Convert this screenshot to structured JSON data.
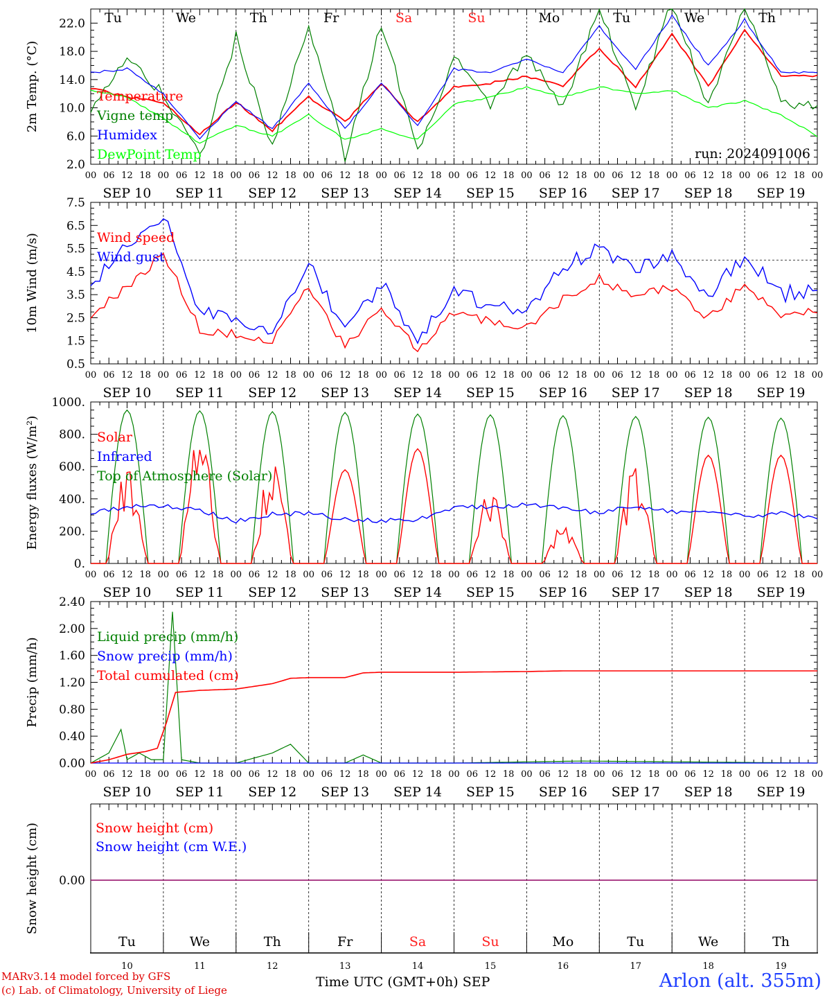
{
  "chart_data": [
    {
      "type": "line",
      "ylabel": "2m Temp. (°C)",
      "ylim": [
        2,
        24
      ],
      "yticks": [
        "2.0",
        "6.0",
        "10.0",
        "14.0",
        "18.0",
        "22.0"
      ],
      "run_label": "run: 2024091006",
      "days_top": [
        "Tu",
        "We",
        "Th",
        "Fr",
        "Sa",
        "Su",
        "Mo",
        "Tu",
        "We",
        "Th"
      ],
      "weekend_days": [
        "Sa",
        "Su"
      ],
      "weekend_color": "#ff2020",
      "x_hours": [
        0,
        12,
        24,
        36,
        48,
        60,
        72,
        84,
        96,
        108,
        120,
        132,
        144,
        156,
        168,
        180,
        192,
        204,
        216,
        228,
        240
      ],
      "series": [
        {
          "name": "Temperature",
          "color": "#ff0000",
          "values": [
            12.8,
            11.5,
            10.8,
            6.2,
            10.8,
            6.8,
            11.5,
            8.0,
            13.5,
            8.0,
            13.0,
            13.5,
            14.5,
            13.0,
            18.5,
            13.0,
            20.5,
            13.0,
            21.0,
            14.5,
            14.5
          ]
        },
        {
          "name": "Vigne temp",
          "color": "#008000",
          "values": [
            9.5,
            17.0,
            12.0,
            3.0,
            20.0,
            4.5,
            22.0,
            3.0,
            22.0,
            4.0,
            17.0,
            10.0,
            18.0,
            10.0,
            24.0,
            10.0,
            25.0,
            10.0,
            25.0,
            10.5,
            10.5
          ]
        },
        {
          "name": "Humidex",
          "color": "#0000ff",
          "values": [
            15.0,
            15.5,
            12.0,
            5.5,
            11.0,
            7.0,
            13.5,
            7.0,
            13.5,
            7.5,
            15.5,
            15.0,
            17.0,
            15.0,
            21.5,
            15.5,
            23.0,
            16.0,
            22.5,
            15.0,
            15.0
          ]
        },
        {
          "name": "DewPoint Temp",
          "color": "#00ff00",
          "values": [
            12.5,
            11.5,
            8.5,
            5.0,
            7.5,
            6.0,
            9.0,
            5.5,
            7.0,
            5.5,
            10.5,
            11.5,
            13.0,
            11.5,
            13.0,
            12.0,
            12.5,
            10.0,
            11.0,
            9.0,
            6.0
          ]
        }
      ]
    },
    {
      "type": "line",
      "ylabel": "10m Wind (m/s)",
      "ylim": [
        0.5,
        7.5
      ],
      "yticks": [
        "0.5",
        "1.5",
        "2.5",
        "3.5",
        "4.5",
        "5.5",
        "6.5",
        "7.5"
      ],
      "ref_line": 5.0,
      "x_hours": [
        0,
        12,
        24,
        36,
        48,
        60,
        72,
        84,
        96,
        108,
        120,
        132,
        144,
        156,
        168,
        180,
        192,
        204,
        216,
        228,
        240
      ],
      "series": [
        {
          "name": "Wind speed",
          "color": "#ff0000",
          "values": [
            2.6,
            3.8,
            5.3,
            2.0,
            1.8,
            1.5,
            3.8,
            1.2,
            3.0,
            1.1,
            2.7,
            2.3,
            2.1,
            3.3,
            4.2,
            3.4,
            3.8,
            2.5,
            3.9,
            2.6,
            2.8
          ]
        },
        {
          "name": "Wind gust",
          "color": "#0000ff",
          "values": [
            4.0,
            5.5,
            7.0,
            2.8,
            2.5,
            2.0,
            5.0,
            1.8,
            4.0,
            1.5,
            3.6,
            3.0,
            2.7,
            4.7,
            5.5,
            4.6,
            5.1,
            3.5,
            5.2,
            3.5,
            3.8
          ]
        }
      ]
    },
    {
      "type": "line",
      "ylabel": "Energy fluxes (W/m²)",
      "ylim": [
        0,
        1000
      ],
      "yticks": [
        "0.",
        "200.",
        "400.",
        "600.",
        "800.",
        "1000."
      ],
      "toa_peaks": [
        950,
        945,
        940,
        935,
        925,
        920,
        915,
        910,
        905,
        900
      ],
      "solar_peaks": [
        520,
        710,
        610,
        580,
        710,
        410,
        230,
        580,
        670,
        670
      ],
      "series": [
        {
          "name": "Solar",
          "color": "#ff0000"
        },
        {
          "name": "Infrared",
          "color": "#0000ff",
          "x_hours": [
            0,
            12,
            24,
            36,
            48,
            60,
            72,
            84,
            96,
            108,
            120,
            132,
            144,
            156,
            168,
            180,
            192,
            204,
            216,
            228,
            240
          ],
          "values": [
            305,
            355,
            360,
            330,
            260,
            305,
            310,
            270,
            265,
            270,
            345,
            350,
            360,
            350,
            310,
            360,
            320,
            310,
            295,
            310,
            290
          ]
        },
        {
          "name": "Top of Atmosphere (Solar)",
          "color": "#008000"
        }
      ]
    },
    {
      "type": "line",
      "ylabel": "Precip (mm/h)",
      "ylim": [
        0,
        2.4
      ],
      "yticks": [
        "0.00",
        "0.40",
        "0.80",
        "1.20",
        "1.60",
        "2.00",
        "2.40"
      ],
      "series": [
        {
          "name": "Liquid precip (mm/h)",
          "color": "#008000",
          "x_hours": [
            0,
            6,
            10,
            12,
            16,
            20,
            24,
            27,
            30,
            36,
            48,
            60,
            66,
            72,
            84,
            90,
            96,
            120,
            162,
            240
          ],
          "values": [
            0.0,
            0.15,
            0.5,
            0.05,
            0.15,
            0.05,
            0.05,
            2.25,
            0.05,
            0.0,
            0.0,
            0.15,
            0.28,
            0.0,
            0.0,
            0.12,
            0.0,
            0.0,
            0.03,
            0.0
          ]
        },
        {
          "name": "Snow precip (mm/h)",
          "color": "#0000ff",
          "x_hours": [
            0,
            240
          ],
          "values": [
            0.0,
            0.0
          ]
        },
        {
          "name": "Total cumulated (cm)",
          "color": "#ff0000",
          "x_hours": [
            0,
            6,
            12,
            18,
            22,
            25,
            28,
            36,
            48,
            60,
            66,
            72,
            84,
            90,
            96,
            120,
            144,
            156,
            240
          ],
          "values": [
            0.0,
            0.05,
            0.13,
            0.17,
            0.22,
            0.6,
            1.05,
            1.08,
            1.1,
            1.18,
            1.26,
            1.27,
            1.27,
            1.34,
            1.35,
            1.35,
            1.36,
            1.37,
            1.37
          ]
        }
      ]
    },
    {
      "type": "line",
      "ylabel": "Snow height (cm)",
      "yticks": [
        "0.00"
      ],
      "series": [
        {
          "name": "Snow height (cm)",
          "color": "#ff0000",
          "x_hours": [
            0,
            240
          ],
          "values": [
            0.0,
            0.0
          ]
        },
        {
          "name": "Snow height (cm W.E.)",
          "color": "#0000ff",
          "x_hours": [
            0,
            240
          ],
          "values": [
            0.0,
            0.0
          ]
        }
      ],
      "days_bottom": [
        "Tu",
        "We",
        "Th",
        "Fr",
        "Sa",
        "Su",
        "Mo",
        "Tu",
        "We",
        "Th"
      ],
      "day_numbers": [
        "10",
        "11",
        "12",
        "13",
        "14",
        "15",
        "16",
        "17",
        "18",
        "19"
      ]
    }
  ],
  "hour_labels": [
    "00",
    "06",
    "12",
    "18"
  ],
  "date_labels": [
    "SEP 10",
    "SEP 11",
    "SEP 12",
    "SEP 13",
    "SEP 14",
    "SEP 15",
    "SEP 16",
    "SEP 17",
    "SEP 18",
    "SEP 19"
  ],
  "footer": {
    "credit_line1": "MARv3.14 model forced by GFS",
    "credit_line2": "(c) Lab. of Climatology, University of Liege",
    "x_title": "Time UTC (GMT+0h) SEP",
    "station": "Arlon (alt. 355m)"
  }
}
